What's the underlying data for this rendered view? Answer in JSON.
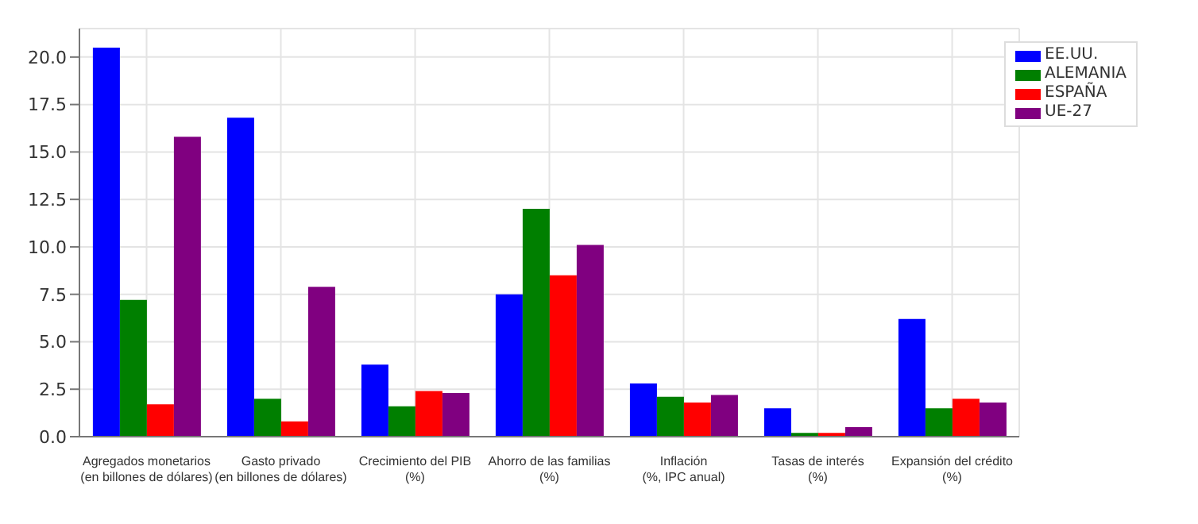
{
  "chart_data": {
    "type": "bar",
    "categories": [
      "Agregados monetarios\n(en billones de dólares)",
      "Gasto privado\n(en billones de dólares)",
      "Crecimiento del PIB\n(%)",
      "Ahorro de las familias\n(%)",
      "Inflación\n(%, IPC anual)",
      "Tasas de interés\n(%)",
      "Expansión del crédito\n(%)"
    ],
    "series": [
      {
        "name": "EE.UU.",
        "color": "#0000ff",
        "values": [
          20.5,
          16.8,
          3.8,
          7.5,
          2.8,
          1.5,
          6.2
        ]
      },
      {
        "name": "ALEMANIA",
        "color": "#007f00",
        "values": [
          7.2,
          2.0,
          1.6,
          12.0,
          2.1,
          0.2,
          1.5
        ]
      },
      {
        "name": "ESPAÑA",
        "color": "#ff0000",
        "values": [
          1.7,
          0.8,
          2.4,
          8.5,
          1.8,
          0.2,
          2.0
        ]
      },
      {
        "name": "UE-27",
        "color": "#800080",
        "values": [
          15.8,
          7.9,
          2.3,
          10.1,
          2.2,
          0.5,
          1.8
        ]
      }
    ],
    "ylim": [
      0,
      21.5
    ],
    "yticks": [
      {
        "value": 0,
        "label": "0.0"
      },
      {
        "value": 2.5,
        "label": "2.5"
      },
      {
        "value": 5,
        "label": "5.0"
      },
      {
        "value": 7.5,
        "label": "7.5"
      },
      {
        "value": 10,
        "label": "10.0"
      },
      {
        "value": 12.5,
        "label": "12.5"
      },
      {
        "value": 15,
        "label": "15.0"
      },
      {
        "value": 17.5,
        "label": "17.5"
      },
      {
        "value": 20,
        "label": "20.0"
      }
    ],
    "grid": true,
    "legend": "top right"
  }
}
